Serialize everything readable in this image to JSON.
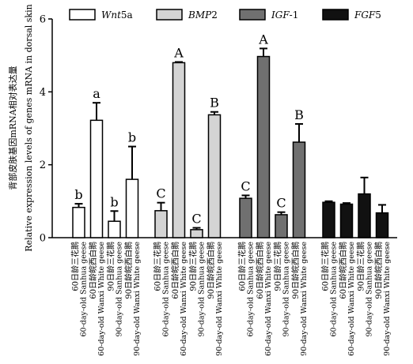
{
  "chart_data": {
    "type": "bar",
    "ylabel_cn": "背部皮肤基因mRNA相对表达量",
    "ylabel_en": "Relative expression levels of genes mRNA in dorsal skin",
    "ylim": [
      0,
      6
    ],
    "yticks": [
      "0",
      "2",
      "4",
      "6"
    ],
    "legend_position": "top",
    "groups": [
      {
        "cn": "60日龄三花鹅",
        "en": "60-day-old Sanhua geese"
      },
      {
        "cn": "60日龄皖西白鹅",
        "en": "60-day-old Wanxi White geese"
      },
      {
        "cn": "90日龄三花鹅",
        "en": "90-day-old Sanhua geese"
      },
      {
        "cn": "90日龄皖西白鹅",
        "en": "90-day-old Wanxi White geese"
      }
    ],
    "series": [
      {
        "name": "Wnt5a",
        "name_italic": "Wnt",
        "name_plain": "5a",
        "color": "#ffffff",
        "values": [
          0.83,
          3.22,
          0.45,
          1.6
        ],
        "errors": [
          0.1,
          0.48,
          0.28,
          0.9
        ],
        "labels": [
          "b",
          "a",
          "b",
          "b"
        ]
      },
      {
        "name": "BMP2",
        "name_italic": "BMP",
        "name_plain": "2",
        "color": "#d4d4d4",
        "values": [
          0.74,
          4.8,
          0.22,
          3.37
        ],
        "errors": [
          0.22,
          0.02,
          0.05,
          0.08
        ],
        "labels": [
          "C",
          "A",
          "C",
          "B"
        ]
      },
      {
        "name": "IGF-1",
        "name_italic": "IGF",
        "name_plain": "-1",
        "color": "#707070",
        "values": [
          1.08,
          4.97,
          0.63,
          2.62
        ],
        "errors": [
          0.08,
          0.22,
          0.07,
          0.5
        ],
        "labels": [
          "C",
          "A",
          "C",
          "B"
        ]
      },
      {
        "name": "FGF5",
        "name_italic": "FGF",
        "name_plain": "5",
        "color": "#111111",
        "values": [
          0.97,
          0.92,
          1.2,
          0.68
        ],
        "errors": [
          0.03,
          0.03,
          0.45,
          0.22
        ],
        "labels": [
          "",
          "",
          "",
          ""
        ]
      }
    ]
  }
}
